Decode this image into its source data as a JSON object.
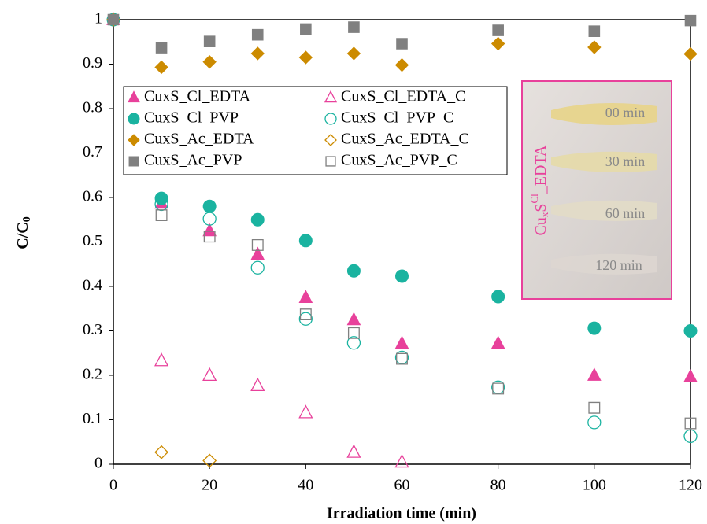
{
  "chart_data": {
    "type": "scatter",
    "xlabel": "Irradiation time (min)",
    "ylabel": "C/C",
    "ylabel_sub": "0",
    "x": [
      0,
      10,
      20,
      30,
      40,
      50,
      60,
      80,
      100,
      120
    ],
    "xlim": [
      0,
      120
    ],
    "xticks": [
      0,
      20,
      40,
      60,
      80,
      100,
      120
    ],
    "ylim": [
      0,
      1
    ],
    "yticks": [
      0,
      0.1,
      0.2,
      0.3,
      0.4,
      0.5,
      0.6,
      0.7,
      0.8,
      0.9,
      1
    ],
    "grid": false,
    "series": [
      {
        "name": "CuxS_Cl_EDTA",
        "color": "#e8419b",
        "marker": "triangle",
        "filled": true,
        "values": [
          1,
          0.587,
          0.525,
          0.472,
          0.375,
          0.325,
          0.272,
          0.272,
          0.2,
          0.197
        ]
      },
      {
        "name": "CuxS_Cl_PVP",
        "color": "#1ab3a0",
        "marker": "circle",
        "filled": true,
        "values": [
          1,
          0.598,
          0.58,
          0.55,
          0.503,
          0.435,
          0.423,
          0.377,
          0.306,
          0.3
        ]
      },
      {
        "name": "CuxS_Ac_EDTA",
        "color": "#cc8b00",
        "marker": "diamond",
        "filled": true,
        "values": [
          1,
          0.893,
          0.905,
          0.924,
          0.915,
          0.924,
          0.898,
          0.946,
          0.938,
          0.923
        ]
      },
      {
        "name": "CuxS_Ac_PVP",
        "color": "#808080",
        "marker": "square",
        "filled": true,
        "values": [
          1,
          0.937,
          0.951,
          0.966,
          0.979,
          0.983,
          0.946,
          0.976,
          0.974,
          0.998
        ]
      },
      {
        "name": "CuxS_Cl_EDTA_C",
        "color": "#e8419b",
        "marker": "triangle",
        "filled": false,
        "values": [
          null,
          0.233,
          0.2,
          0.177,
          0.116,
          0.027,
          0.005,
          null,
          null,
          null
        ]
      },
      {
        "name": "CuxS_Cl_PVP_C",
        "color": "#1ab3a0",
        "marker": "circle",
        "filled": false,
        "values": [
          null,
          0.585,
          0.552,
          0.442,
          0.327,
          0.273,
          0.24,
          0.173,
          0.094,
          0.063
        ]
      },
      {
        "name": "CuxS_Ac_EDTA_C",
        "color": "#cc8b00",
        "marker": "diamond",
        "filled": false,
        "values": [
          null,
          0.027,
          0.008,
          null,
          null,
          null,
          null,
          null,
          null,
          null
        ]
      },
      {
        "name": "CuxS_Ac_PVP_C",
        "color": "#808080",
        "marker": "square",
        "filled": false,
        "values": [
          null,
          0.56,
          0.512,
          0.493,
          0.337,
          0.295,
          0.237,
          0.17,
          0.127,
          0.092
        ]
      }
    ],
    "inset": {
      "label": {
        "a": "Cu",
        "b": "x",
        "c": "S",
        "d": "Cl",
        "e": "_EDTA"
      },
      "times": [
        "00 min",
        "30 min",
        "60 min",
        "120 min"
      ]
    }
  }
}
